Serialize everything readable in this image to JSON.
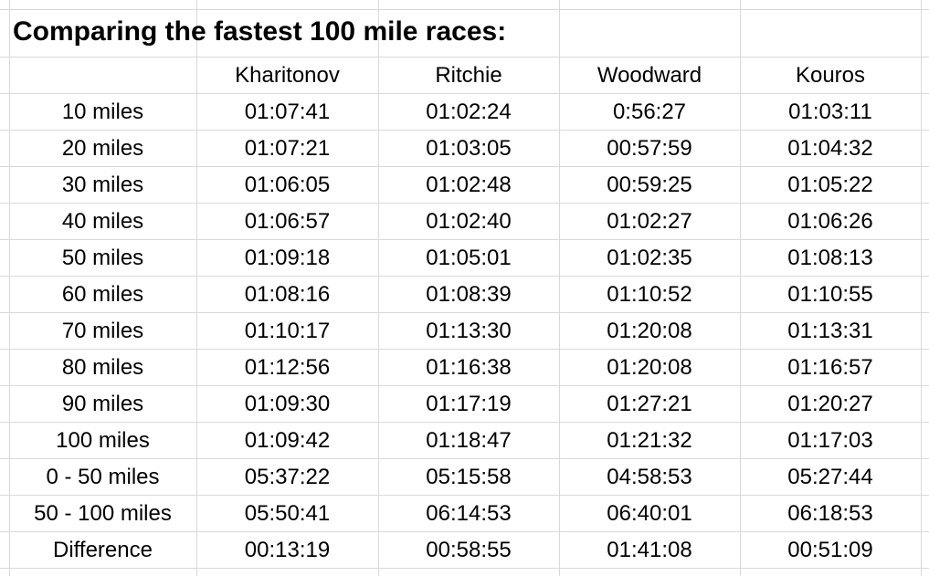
{
  "title": "Comparing the fastest 100 mile races:",
  "table": {
    "columns": [
      "Kharitonov",
      "Ritchie",
      "Woodward",
      "Kouros"
    ],
    "rows": [
      {
        "label": "10 miles",
        "values": [
          "01:07:41",
          "01:02:24",
          "0:56:27",
          "01:03:11"
        ]
      },
      {
        "label": "20 miles",
        "values": [
          "01:07:21",
          "01:03:05",
          "00:57:59",
          "01:04:32"
        ]
      },
      {
        "label": "30 miles",
        "values": [
          "01:06:05",
          "01:02:48",
          "00:59:25",
          "01:05:22"
        ]
      },
      {
        "label": "40 miles",
        "values": [
          "01:06:57",
          "01:02:40",
          "01:02:27",
          "01:06:26"
        ]
      },
      {
        "label": "50 miles",
        "values": [
          "01:09:18",
          "01:05:01",
          "01:02:35",
          "01:08:13"
        ]
      },
      {
        "label": "60 miles",
        "values": [
          "01:08:16",
          "01:08:39",
          "01:10:52",
          "01:10:55"
        ]
      },
      {
        "label": "70 miles",
        "values": [
          "01:10:17",
          "01:13:30",
          "01:20:08",
          "01:13:31"
        ]
      },
      {
        "label": "80 miles",
        "values": [
          "01:12:56",
          "01:16:38",
          "01:20:08",
          "01:16:57"
        ]
      },
      {
        "label": "90 miles",
        "values": [
          "01:09:30",
          "01:17:19",
          "01:27:21",
          "01:20:27"
        ]
      },
      {
        "label": "100 miles",
        "values": [
          "01:09:42",
          "01:18:47",
          "01:21:32",
          "01:17:03"
        ]
      },
      {
        "label": "0 - 50 miles",
        "values": [
          "05:37:22",
          "05:15:58",
          "04:58:53",
          "05:27:44"
        ]
      },
      {
        "label": "50 - 100 miles",
        "values": [
          "05:50:41",
          "06:14:53",
          "06:40:01",
          "06:18:53"
        ]
      },
      {
        "label": "Difference",
        "values": [
          "00:13:19",
          "00:58:55",
          "01:41:08",
          "00:51:09"
        ]
      }
    ]
  }
}
